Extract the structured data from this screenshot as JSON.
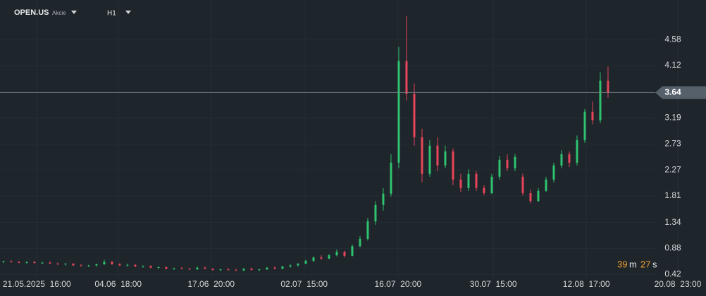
{
  "header": {
    "symbol": "OPEN.US",
    "asset_class": "Akcie",
    "timeframe": "H1"
  },
  "countdown": {
    "minutes": "39",
    "minutes_unit": "m",
    "seconds": "27",
    "seconds_unit": "s"
  },
  "chart_data": {
    "type": "candlestick",
    "up_color": "#2fc36f",
    "down_color": "#e8455a",
    "background": "#1e252b",
    "grid": true,
    "last_price": 3.64,
    "xlim": [
      -0.45,
      90.64
    ],
    "xticks": [
      {
        "value": 4.3,
        "label": "21.05.2025  16:00"
      },
      {
        "value": 14.8,
        "label": "04.06  18:00"
      },
      {
        "value": 26.8,
        "label": "17.06  20:00"
      },
      {
        "value": 38.8,
        "label": "02.07  15:00"
      },
      {
        "value": 50.9,
        "label": "16.07  20:00"
      },
      {
        "value": 63.2,
        "label": "30.07  15:00"
      },
      {
        "value": 75.2,
        "label": "12.08  17:00"
      },
      {
        "value": 87,
        "label": "20.08  23:00"
      }
    ],
    "ylim": [
      0.35,
      5.28
    ],
    "yticks": [
      0.42,
      0.88,
      1.34,
      1.81,
      2.27,
      2.73,
      3.19,
      4.12,
      4.58
    ],
    "open": [
      0.64,
      0.65,
      0.64,
      0.63,
      0.64,
      0.62,
      0.63,
      0.61,
      0.6,
      0.61,
      0.58,
      0.57,
      0.58,
      0.6,
      0.64,
      0.6,
      0.58,
      0.59,
      0.56,
      0.57,
      0.54,
      0.55,
      0.52,
      0.53,
      0.52,
      0.51,
      0.54,
      0.52,
      0.5,
      0.51,
      0.5,
      0.49,
      0.52,
      0.5,
      0.51,
      0.54,
      0.52,
      0.56,
      0.58,
      0.61,
      0.66,
      0.72,
      0.7,
      0.76,
      0.82,
      0.75,
      0.92,
      1.05,
      1.36,
      1.65,
      1.85,
      2.4,
      4.2,
      3.62,
      2.85,
      2.2,
      2.7,
      2.35,
      2.6,
      2.1,
      1.95,
      2.2,
      1.95,
      1.86,
      2.15,
      2.45,
      2.3,
      2.15,
      1.86,
      1.72,
      1.9,
      2.1,
      2.35,
      2.55,
      2.4,
      2.8,
      3.3,
      3.15,
      3.85
    ],
    "high": [
      0.66,
      0.67,
      0.66,
      0.65,
      0.66,
      0.64,
      0.65,
      0.63,
      0.62,
      0.62,
      0.6,
      0.59,
      0.61,
      0.68,
      0.66,
      0.62,
      0.61,
      0.6,
      0.58,
      0.58,
      0.56,
      0.56,
      0.54,
      0.55,
      0.54,
      0.56,
      0.56,
      0.53,
      0.52,
      0.53,
      0.52,
      0.53,
      0.54,
      0.52,
      0.55,
      0.56,
      0.57,
      0.6,
      0.62,
      0.68,
      0.74,
      0.76,
      0.78,
      0.86,
      0.84,
      0.95,
      1.1,
      1.42,
      1.72,
      1.95,
      2.55,
      4.45,
      5.0,
      3.8,
      3.0,
      2.8,
      2.85,
      2.7,
      2.65,
      2.2,
      2.28,
      2.25,
      2.0,
      2.2,
      2.52,
      2.55,
      2.55,
      2.2,
      1.92,
      1.95,
      2.15,
      2.4,
      2.62,
      2.6,
      2.88,
      3.35,
      3.48,
      4.0,
      4.1
    ],
    "low": [
      0.62,
      0.63,
      0.62,
      0.61,
      0.62,
      0.6,
      0.61,
      0.59,
      0.58,
      0.57,
      0.56,
      0.55,
      0.56,
      0.59,
      0.59,
      0.57,
      0.56,
      0.55,
      0.54,
      0.53,
      0.52,
      0.51,
      0.5,
      0.51,
      0.5,
      0.5,
      0.51,
      0.49,
      0.48,
      0.49,
      0.48,
      0.48,
      0.49,
      0.48,
      0.5,
      0.51,
      0.51,
      0.54,
      0.56,
      0.6,
      0.64,
      0.68,
      0.69,
      0.74,
      0.72,
      0.74,
      0.9,
      1.02,
      1.3,
      1.55,
      1.8,
      2.3,
      3.5,
      2.7,
      2.05,
      2.15,
      2.25,
      2.3,
      2.0,
      1.88,
      1.9,
      1.9,
      1.82,
      1.84,
      2.1,
      2.25,
      2.25,
      1.82,
      1.68,
      1.7,
      1.88,
      2.05,
      2.3,
      2.32,
      2.35,
      2.75,
      3.08,
      3.1,
      3.55
    ],
    "close": [
      0.65,
      0.64,
      0.63,
      0.64,
      0.62,
      0.63,
      0.61,
      0.6,
      0.61,
      0.58,
      0.57,
      0.58,
      0.6,
      0.64,
      0.6,
      0.58,
      0.59,
      0.56,
      0.57,
      0.54,
      0.55,
      0.52,
      0.53,
      0.52,
      0.51,
      0.54,
      0.52,
      0.5,
      0.51,
      0.5,
      0.49,
      0.52,
      0.5,
      0.51,
      0.54,
      0.52,
      0.56,
      0.58,
      0.61,
      0.66,
      0.72,
      0.7,
      0.76,
      0.82,
      0.75,
      0.92,
      1.05,
      1.36,
      1.65,
      1.85,
      2.4,
      4.2,
      3.62,
      2.85,
      2.2,
      2.7,
      2.35,
      2.6,
      2.1,
      1.95,
      2.2,
      1.95,
      1.86,
      2.15,
      2.45,
      2.3,
      2.5,
      1.86,
      1.72,
      1.9,
      2.1,
      2.35,
      2.55,
      2.4,
      2.8,
      3.3,
      3.15,
      3.85,
      3.64
    ]
  }
}
